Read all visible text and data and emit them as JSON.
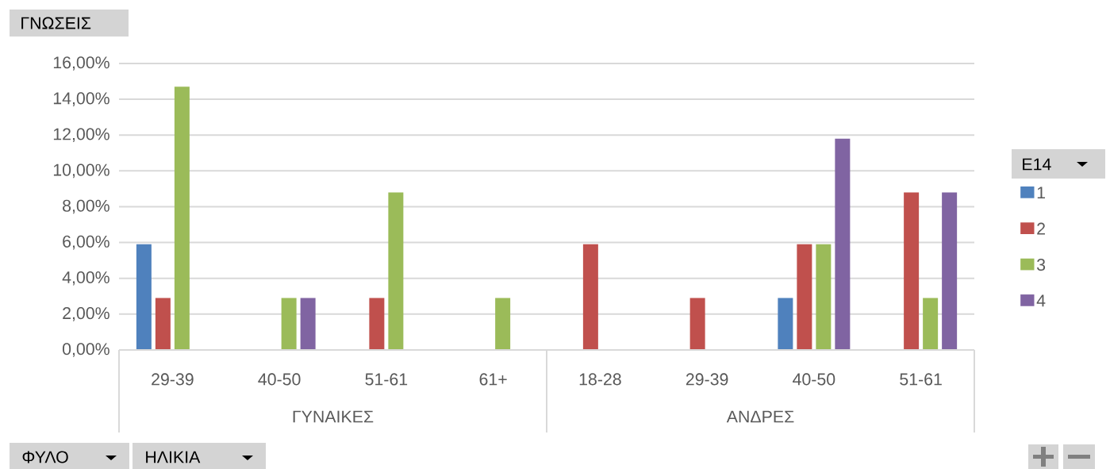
{
  "chart_data": {
    "type": "bar",
    "title": "ΓΝΩΣΕΙΣ",
    "legend_title": "E14",
    "categories": [
      "29-39",
      "40-50",
      "51-61",
      "61+",
      "18-28",
      "29-39",
      "40-50",
      "51-61"
    ],
    "annotations": [
      "ΓΥΝΑΙΚΕΣ",
      "ΑΝΔΡΕΣ",
      "ΦΥΛΟ",
      "ΗΛΙΚΙΑ"
    ],
    "series": [
      {
        "name": "1",
        "color": "#4f81bd",
        "values": [
          5.9,
          null,
          null,
          null,
          null,
          null,
          2.9,
          null
        ]
      },
      {
        "name": "2",
        "color": "#c0504d",
        "values": [
          2.9,
          null,
          2.9,
          null,
          5.9,
          2.9,
          5.9,
          8.8
        ]
      },
      {
        "name": "3",
        "color": "#9bbb59",
        "values": [
          14.7,
          2.9,
          8.8,
          2.9,
          null,
          null,
          5.9,
          2.9
        ]
      },
      {
        "name": "4",
        "color": "#8064a2",
        "values": [
          null,
          2.9,
          null,
          null,
          null,
          null,
          11.8,
          8.8
        ]
      }
    ],
    "ylim": [
      0,
      16
    ],
    "yticks": [
      {
        "value": 0,
        "label": "0,00%"
      },
      {
        "value": 2,
        "label": "2,00%"
      },
      {
        "value": 4,
        "label": "4,00%"
      },
      {
        "value": 6,
        "label": "6,00%"
      },
      {
        "value": 8,
        "label": "8,00%"
      },
      {
        "value": 10,
        "label": "10,00%"
      },
      {
        "value": 12,
        "label": "12,00%"
      },
      {
        "value": 14,
        "label": "14,00%"
      },
      {
        "value": 16,
        "label": "16,00%"
      }
    ],
    "grid": "y",
    "legend": "right"
  }
}
